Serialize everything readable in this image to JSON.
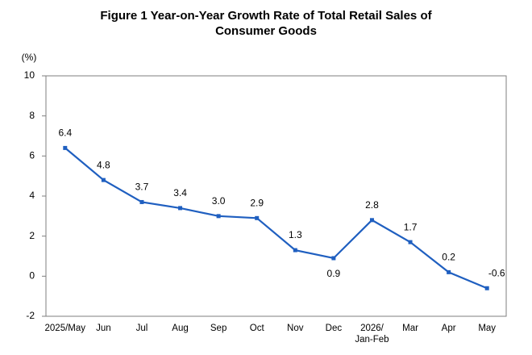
{
  "chart_data": {
    "type": "line",
    "title": "Figure 1 Year-on-Year Growth Rate of Total Retail Sales of\nConsumer Goods",
    "y_label": "(%)",
    "categories": [
      "2025/May",
      "Jun",
      "Jul",
      "Aug",
      "Sep",
      "Oct",
      "Nov",
      "Dec",
      "2026/\nJan-Feb",
      "Mar",
      "Apr",
      "May"
    ],
    "series": [
      {
        "name": "Year-on-Year Growth Rate",
        "color": "#1f5fc0",
        "values": [
          6.4,
          4.8,
          3.7,
          3.4,
          3.0,
          2.9,
          1.3,
          0.9,
          2.8,
          1.7,
          0.2,
          -0.6
        ],
        "value_labels": [
          "6.4",
          "4.8",
          "3.7",
          "3.4",
          "3.0",
          "2.9",
          "1.3",
          "0.9",
          "2.8",
          "1.7",
          "0.2",
          "-0.6"
        ]
      }
    ],
    "ylim": [
      -2,
      10
    ],
    "yticks": [
      -2,
      0,
      2,
      4,
      6,
      8,
      10
    ],
    "grid": false,
    "legend": false
  }
}
